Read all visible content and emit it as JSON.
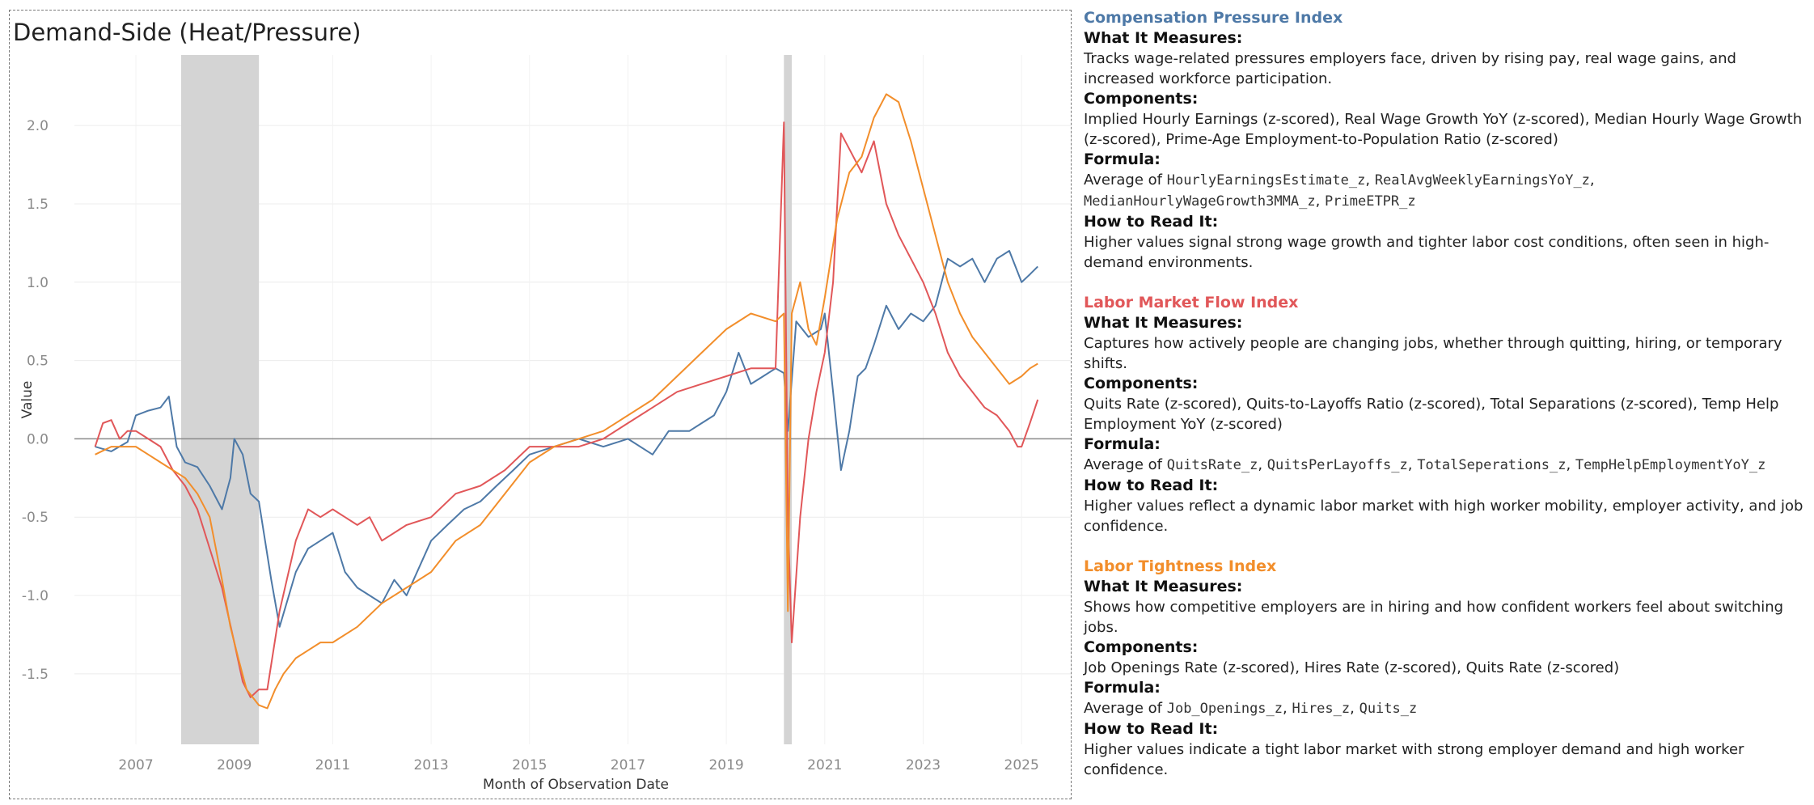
{
  "chart_title": "Demand-Side (Heat/Pressure)",
  "chart_data": {
    "type": "line",
    "title": "Demand-Side (Heat/Pressure)",
    "xlabel": "Month of Observation Date",
    "ylabel": "Value",
    "xlim": [
      2005.75,
      2026.0
    ],
    "ylim": [
      -1.95,
      2.45
    ],
    "x_ticks": [
      "2007",
      "2009",
      "2011",
      "2013",
      "2015",
      "2017",
      "2019",
      "2021",
      "2023",
      "2025"
    ],
    "y_ticks": [
      "2.0",
      "1.5",
      "1.0",
      "0.5",
      "0.0",
      "-0.5",
      "-1.0",
      "-1.5"
    ],
    "recession_shading": [
      [
        2007.92,
        2009.5
      ],
      [
        2020.17,
        2020.33
      ]
    ],
    "series": [
      {
        "name": "Compensation Pressure Index",
        "color": "#4e79a7",
        "points": [
          [
            2006.17,
            -0.05
          ],
          [
            2006.5,
            -0.08
          ],
          [
            2006.83,
            -0.02
          ],
          [
            2007.0,
            0.15
          ],
          [
            2007.25,
            0.18
          ],
          [
            2007.5,
            0.2
          ],
          [
            2007.67,
            0.27
          ],
          [
            2007.83,
            -0.05
          ],
          [
            2008.0,
            -0.15
          ],
          [
            2008.25,
            -0.18
          ],
          [
            2008.5,
            -0.3
          ],
          [
            2008.75,
            -0.45
          ],
          [
            2008.92,
            -0.25
          ],
          [
            2009.0,
            0.0
          ],
          [
            2009.17,
            -0.1
          ],
          [
            2009.33,
            -0.35
          ],
          [
            2009.5,
            -0.4
          ],
          [
            2009.75,
            -0.9
          ],
          [
            2009.92,
            -1.2
          ],
          [
            2010.25,
            -0.85
          ],
          [
            2010.5,
            -0.7
          ],
          [
            2010.75,
            -0.65
          ],
          [
            2011.0,
            -0.6
          ],
          [
            2011.25,
            -0.85
          ],
          [
            2011.5,
            -0.95
          ],
          [
            2011.75,
            -1.0
          ],
          [
            2012.0,
            -1.05
          ],
          [
            2012.25,
            -0.9
          ],
          [
            2012.5,
            -1.0
          ],
          [
            2013.0,
            -0.65
          ],
          [
            2013.33,
            -0.55
          ],
          [
            2013.67,
            -0.45
          ],
          [
            2014.0,
            -0.4
          ],
          [
            2014.33,
            -0.3
          ],
          [
            2014.67,
            -0.2
          ],
          [
            2015.0,
            -0.1
          ],
          [
            2015.5,
            -0.05
          ],
          [
            2016.0,
            0.0
          ],
          [
            2016.5,
            -0.05
          ],
          [
            2017.0,
            0.0
          ],
          [
            2017.5,
            -0.1
          ],
          [
            2017.83,
            0.05
          ],
          [
            2018.25,
            0.05
          ],
          [
            2018.5,
            0.1
          ],
          [
            2018.75,
            0.15
          ],
          [
            2019.0,
            0.3
          ],
          [
            2019.25,
            0.55
          ],
          [
            2019.5,
            0.35
          ],
          [
            2019.75,
            0.4
          ],
          [
            2020.0,
            0.45
          ],
          [
            2020.17,
            0.42
          ],
          [
            2020.25,
            0.05
          ],
          [
            2020.42,
            0.75
          ],
          [
            2020.67,
            0.65
          ],
          [
            2020.92,
            0.7
          ],
          [
            2021.0,
            0.8
          ],
          [
            2021.17,
            0.3
          ],
          [
            2021.33,
            -0.2
          ],
          [
            2021.5,
            0.05
          ],
          [
            2021.67,
            0.4
          ],
          [
            2021.83,
            0.45
          ],
          [
            2022.0,
            0.6
          ],
          [
            2022.25,
            0.85
          ],
          [
            2022.5,
            0.7
          ],
          [
            2022.75,
            0.8
          ],
          [
            2023.0,
            0.75
          ],
          [
            2023.25,
            0.85
          ],
          [
            2023.5,
            1.15
          ],
          [
            2023.75,
            1.1
          ],
          [
            2024.0,
            1.15
          ],
          [
            2024.25,
            1.0
          ],
          [
            2024.5,
            1.15
          ],
          [
            2024.75,
            1.2
          ],
          [
            2025.0,
            1.0
          ],
          [
            2025.17,
            1.05
          ],
          [
            2025.33,
            1.1
          ]
        ]
      },
      {
        "name": "Labor Market Flow Index",
        "color": "#e15759",
        "points": [
          [
            2006.17,
            -0.05
          ],
          [
            2006.33,
            0.1
          ],
          [
            2006.5,
            0.12
          ],
          [
            2006.67,
            0.0
          ],
          [
            2006.83,
            0.05
          ],
          [
            2007.0,
            0.05
          ],
          [
            2007.25,
            0.0
          ],
          [
            2007.5,
            -0.05
          ],
          [
            2007.75,
            -0.2
          ],
          [
            2008.0,
            -0.3
          ],
          [
            2008.25,
            -0.45
          ],
          [
            2008.5,
            -0.7
          ],
          [
            2008.75,
            -0.95
          ],
          [
            2009.0,
            -1.3
          ],
          [
            2009.17,
            -1.55
          ],
          [
            2009.33,
            -1.65
          ],
          [
            2009.5,
            -1.6
          ],
          [
            2009.67,
            -1.6
          ],
          [
            2009.92,
            -1.1
          ],
          [
            2010.25,
            -0.65
          ],
          [
            2010.5,
            -0.45
          ],
          [
            2010.75,
            -0.5
          ],
          [
            2011.0,
            -0.45
          ],
          [
            2011.25,
            -0.5
          ],
          [
            2011.5,
            -0.55
          ],
          [
            2011.75,
            -0.5
          ],
          [
            2012.0,
            -0.65
          ],
          [
            2012.5,
            -0.55
          ],
          [
            2013.0,
            -0.5
          ],
          [
            2013.5,
            -0.35
          ],
          [
            2014.0,
            -0.3
          ],
          [
            2014.5,
            -0.2
          ],
          [
            2015.0,
            -0.05
          ],
          [
            2015.5,
            -0.05
          ],
          [
            2016.0,
            -0.05
          ],
          [
            2016.5,
            0.0
          ],
          [
            2017.0,
            0.1
          ],
          [
            2017.5,
            0.2
          ],
          [
            2018.0,
            0.3
          ],
          [
            2018.5,
            0.35
          ],
          [
            2019.0,
            0.4
          ],
          [
            2019.5,
            0.45
          ],
          [
            2020.0,
            0.45
          ],
          [
            2020.17,
            2.02
          ],
          [
            2020.25,
            -0.5
          ],
          [
            2020.33,
            -1.3
          ],
          [
            2020.5,
            -0.5
          ],
          [
            2020.67,
            0.0
          ],
          [
            2020.83,
            0.3
          ],
          [
            2021.0,
            0.55
          ],
          [
            2021.17,
            1.0
          ],
          [
            2021.33,
            1.95
          ],
          [
            2021.5,
            1.85
          ],
          [
            2021.75,
            1.7
          ],
          [
            2022.0,
            1.9
          ],
          [
            2022.25,
            1.5
          ],
          [
            2022.5,
            1.3
          ],
          [
            2022.75,
            1.15
          ],
          [
            2023.0,
            1.0
          ],
          [
            2023.25,
            0.8
          ],
          [
            2023.5,
            0.55
          ],
          [
            2023.75,
            0.4
          ],
          [
            2024.0,
            0.3
          ],
          [
            2024.25,
            0.2
          ],
          [
            2024.5,
            0.15
          ],
          [
            2024.75,
            0.05
          ],
          [
            2024.92,
            -0.05
          ],
          [
            2025.0,
            -0.05
          ],
          [
            2025.17,
            0.1
          ],
          [
            2025.33,
            0.25
          ]
        ]
      },
      {
        "name": "Labor Tightness Index",
        "color": "#f28e2b",
        "points": [
          [
            2006.17,
            -0.1
          ],
          [
            2006.5,
            -0.05
          ],
          [
            2006.83,
            -0.05
          ],
          [
            2007.0,
            -0.05
          ],
          [
            2007.25,
            -0.1
          ],
          [
            2007.5,
            -0.15
          ],
          [
            2007.75,
            -0.2
          ],
          [
            2008.0,
            -0.25
          ],
          [
            2008.25,
            -0.35
          ],
          [
            2008.5,
            -0.5
          ],
          [
            2008.75,
            -0.9
          ],
          [
            2008.92,
            -1.2
          ],
          [
            2009.08,
            -1.4
          ],
          [
            2009.25,
            -1.6
          ],
          [
            2009.5,
            -1.7
          ],
          [
            2009.67,
            -1.72
          ],
          [
            2009.83,
            -1.6
          ],
          [
            2010.0,
            -1.5
          ],
          [
            2010.25,
            -1.4
          ],
          [
            2010.5,
            -1.35
          ],
          [
            2010.75,
            -1.3
          ],
          [
            2011.0,
            -1.3
          ],
          [
            2011.5,
            -1.2
          ],
          [
            2012.0,
            -1.05
          ],
          [
            2012.5,
            -0.95
          ],
          [
            2013.0,
            -0.85
          ],
          [
            2013.5,
            -0.65
          ],
          [
            2014.0,
            -0.55
          ],
          [
            2014.5,
            -0.35
          ],
          [
            2015.0,
            -0.15
          ],
          [
            2015.5,
            -0.05
          ],
          [
            2016.0,
            0.0
          ],
          [
            2016.5,
            0.05
          ],
          [
            2017.0,
            0.15
          ],
          [
            2017.5,
            0.25
          ],
          [
            2018.0,
            0.4
          ],
          [
            2018.5,
            0.55
          ],
          [
            2019.0,
            0.7
          ],
          [
            2019.5,
            0.8
          ],
          [
            2020.0,
            0.75
          ],
          [
            2020.17,
            0.8
          ],
          [
            2020.25,
            -1.1
          ],
          [
            2020.33,
            0.8
          ],
          [
            2020.5,
            1.0
          ],
          [
            2020.67,
            0.7
          ],
          [
            2020.83,
            0.6
          ],
          [
            2021.0,
            0.9
          ],
          [
            2021.25,
            1.4
          ],
          [
            2021.5,
            1.7
          ],
          [
            2021.75,
            1.8
          ],
          [
            2022.0,
            2.05
          ],
          [
            2022.25,
            2.2
          ],
          [
            2022.5,
            2.15
          ],
          [
            2022.75,
            1.9
          ],
          [
            2023.0,
            1.6
          ],
          [
            2023.25,
            1.3
          ],
          [
            2023.5,
            1.0
          ],
          [
            2023.75,
            0.8
          ],
          [
            2024.0,
            0.65
          ],
          [
            2024.25,
            0.55
          ],
          [
            2024.5,
            0.45
          ],
          [
            2024.75,
            0.35
          ],
          [
            2025.0,
            0.4
          ],
          [
            2025.17,
            0.45
          ],
          [
            2025.33,
            0.48
          ]
        ]
      }
    ]
  },
  "panel": [
    {
      "title": "Compensation Pressure Index",
      "color": "#4e79a7",
      "h_measures": "What It Measures:",
      "measures": "Tracks wage-related pressures employers face, driven by rising pay, real wage gains, and increased workforce participation.",
      "h_components": "Components:",
      "components": "Implied Hourly Earnings (z-scored), Real Wage Growth YoY (z-scored), Median Hourly Wage Growth (z-scored), Prime-Age Employment-to-Population Ratio (z-scored)",
      "h_formula": "Formula:",
      "formula_prefix": "Average of ",
      "formula_terms": [
        "HourlyEarningsEstimate_z",
        "RealAvgWeeklyEarningsYoY_z",
        "MedianHourlyWageGrowth3MMA_z",
        "PrimeETPR_z"
      ],
      "h_read": "How to Read It:",
      "read": "Higher values signal strong wage growth and tighter labor cost conditions, often seen in high-demand environments."
    },
    {
      "title": "Labor Market Flow Index",
      "color": "#e15759",
      "h_measures": "What It Measures:",
      "measures": "Captures how actively people are changing jobs, whether through quitting, hiring, or temporary shifts.",
      "h_components": "Components:",
      "components": "Quits Rate (z-scored), Quits-to-Layoffs Ratio (z-scored), Total Separations (z-scored), Temp Help Employment YoY (z-scored)",
      "h_formula": "Formula:",
      "formula_prefix": "Average of ",
      "formula_terms": [
        "QuitsRate_z",
        "QuitsPerLayoffs_z",
        "TotalSeperations_z",
        "TempHelpEmploymentYoY_z"
      ],
      "h_read": "How to Read It:",
      "read": "Higher values reflect a dynamic labor market with high worker mobility, employer activity, and job confidence."
    },
    {
      "title": "Labor Tightness Index",
      "color": "#f28e2b",
      "h_measures": "What It Measures:",
      "measures": "Shows how competitive employers are in hiring and how confident workers feel about switching jobs.",
      "h_components": "Components:",
      "components": "Job Openings Rate (z-scored), Hires Rate (z-scored), Quits Rate (z-scored)",
      "h_formula": "Formula:",
      "formula_prefix": "Average of ",
      "formula_terms": [
        "Job_Openings_z",
        "Hires_z",
        "Quits_z"
      ],
      "h_read": "How to Read It:",
      "read": "Higher values indicate a tight labor market with strong employer demand and high worker confidence."
    }
  ]
}
